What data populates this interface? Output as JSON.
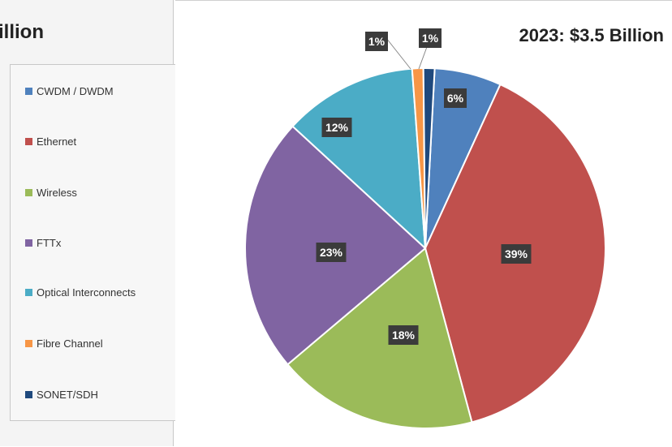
{
  "left": {
    "title": "illion"
  },
  "chart_data": {
    "type": "pie",
    "title": "2023: $3.5 Billion",
    "legend_position": "left",
    "slices": [
      {
        "name": "CWDM / DWDM",
        "value": 6,
        "label": "6%",
        "color": "#4f81bd"
      },
      {
        "name": "Ethernet",
        "value": 39,
        "label": "39%",
        "color": "#c0504d"
      },
      {
        "name": "Wireless",
        "value": 18,
        "label": "18%",
        "color": "#9bbb59"
      },
      {
        "name": "FTTx",
        "value": 23,
        "label": "23%",
        "color": "#8064a2"
      },
      {
        "name": "Optical Interconnects",
        "value": 12,
        "label": "12%",
        "color": "#4bacc6"
      },
      {
        "name": "Fibre Channel",
        "value": 1,
        "label": "1%",
        "color": "#f79646"
      },
      {
        "name": "SONET/SDH",
        "value": 1,
        "label": "1%",
        "color": "#1f497d"
      }
    ]
  }
}
